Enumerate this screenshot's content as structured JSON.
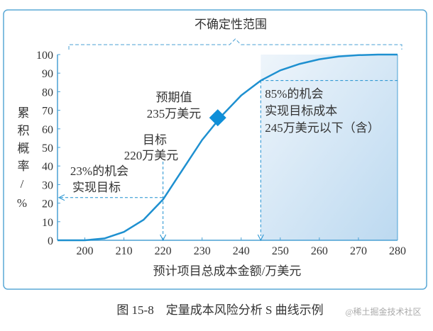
{
  "chart_data": {
    "type": "line",
    "title": "",
    "xlabel": "预计项目总成本金额/万美元",
    "ylabel_chars": [
      "累",
      "积",
      "概",
      "率",
      "/",
      "%"
    ],
    "ylabel": "累积概率/%",
    "xlim": [
      193,
      280
    ],
    "ylim": [
      0,
      100
    ],
    "x_ticks": [
      200,
      210,
      220,
      230,
      240,
      250,
      260,
      270,
      280
    ],
    "y_ticks": [
      0,
      10,
      20,
      30,
      40,
      50,
      60,
      70,
      80,
      90,
      100
    ],
    "series": [
      {
        "name": "S曲线",
        "color": "#1e90d0",
        "x": [
          193,
          200,
          205,
          210,
          215,
          220,
          225,
          230,
          235,
          240,
          245,
          250,
          255,
          260,
          265,
          270,
          275,
          280
        ],
        "y": [
          0,
          0,
          1,
          4.5,
          11,
          22,
          38,
          54,
          67,
          78,
          86,
          91.5,
          95,
          97.5,
          99,
          99.7,
          100,
          100
        ]
      }
    ],
    "expected_point": {
      "x": 234,
      "y": 66,
      "label_line1": "预期值",
      "label_line2": "235万美元"
    },
    "target_annotation": {
      "x": 220,
      "y": 23,
      "label_line1": "目标",
      "label_line2": "220万美元",
      "chance_line1": "23%的机会",
      "chance_line2": "实现目标"
    },
    "p85_annotation": {
      "x": 245,
      "y": 86,
      "line1": "85%的机会",
      "line2": "实现目标成本",
      "line3": "245万美元以下（含）"
    },
    "uncertainty_range": {
      "label": "不确定性范围",
      "from": 197,
      "to": 280
    },
    "shaded_from": 245,
    "caption": "图 15-8　定量成本风险分析 S 曲线示例",
    "watermark": "@稀土掘金技术社区"
  }
}
